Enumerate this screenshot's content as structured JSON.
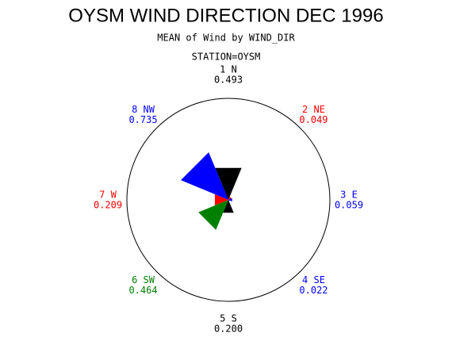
{
  "chart_data": {
    "type": "radar",
    "title": "OYSM WIND DIRECTION DEC 1996",
    "subtitle": "MEAN of Wind by WIND_DIR",
    "station": "STATION=OYSM",
    "categories": [
      "1 N",
      "2 NE",
      "3 E",
      "4 SE",
      "5 S",
      "6 SW",
      "7 W",
      "8 NW"
    ],
    "values": [
      0.493,
      0.049,
      0.059,
      0.022,
      0.2,
      0.464,
      0.209,
      0.735
    ],
    "value_labels": [
      "0.493",
      "0.049",
      "0.059",
      "0.022",
      "0.200",
      "0.464",
      "0.209",
      "0.735"
    ],
    "colors": [
      "#000000",
      "#ff0000",
      "#0000ff",
      "#0000ff",
      "#000000",
      "#008000",
      "#ff0000",
      "#0000ff"
    ],
    "rlim": [
      0,
      1.45
    ]
  }
}
